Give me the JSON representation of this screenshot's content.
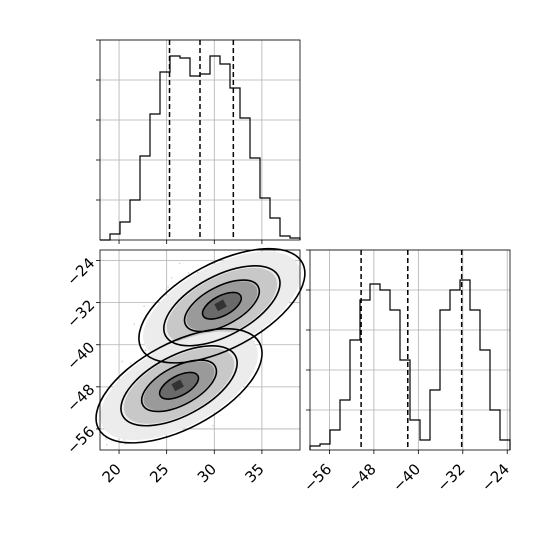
{
  "chart_data": [
    {
      "type": "histogram",
      "panel": "top-left",
      "variable_index": 0,
      "xlim": [
        18,
        39
      ],
      "ylim": [
        0,
        100
      ],
      "bins_x": [
        18,
        19.05,
        20.1,
        21.15,
        22.2,
        23.25,
        24.3,
        25.35,
        26.4,
        27.45,
        28.5,
        29.55,
        30.6,
        31.65,
        32.7,
        33.75,
        34.8,
        35.85,
        36.9,
        37.95,
        39
      ],
      "counts": [
        0,
        3,
        9,
        20,
        42,
        63,
        84,
        92,
        91,
        82,
        83,
        92,
        88,
        76,
        61,
        41,
        21,
        11,
        2,
        1
      ],
      "quantiles": [
        25.3,
        28.5,
        32.0
      ],
      "grid": true
    },
    {
      "type": "scatter",
      "panel": "bottom-left",
      "subtype": "2d-histogram-with-contours",
      "xlim": [
        18,
        39
      ],
      "ylim": [
        -60,
        -22
      ],
      "xticks": [
        20,
        25,
        30,
        35
      ],
      "yticks": [
        -24,
        -32,
        -40,
        -48,
        -56
      ],
      "clusters": [
        {
          "center_x": 30.8,
          "center_y": -32.6,
          "sigma_major": 3.2,
          "sigma_minor": 1.5,
          "angle_deg": -28
        },
        {
          "center_x": 26.3,
          "center_y": -47.8,
          "sigma_major": 3.2,
          "sigma_minor": 1.5,
          "angle_deg": -28
        }
      ],
      "grid": true
    },
    {
      "type": "histogram",
      "panel": "bottom-right",
      "variable_index": 1,
      "xlim": [
        -59.5,
        -23.5
      ],
      "ylim": [
        0,
        100
      ],
      "xticks": [
        -56,
        -48,
        -40,
        -32,
        -24
      ],
      "bins_x": [
        -59.5,
        -57.7,
        -55.9,
        -54.1,
        -52.3,
        -50.5,
        -48.7,
        -46.9,
        -45.1,
        -43.3,
        -41.5,
        -39.7,
        -37.9,
        -36.1,
        -34.3,
        -32.5,
        -30.7,
        -28.9,
        -27.1,
        -25.3,
        -23.5
      ],
      "counts": [
        2,
        3,
        10,
        25,
        55,
        75,
        83,
        80,
        70,
        45,
        15,
        5,
        30,
        70,
        80,
        85,
        70,
        50,
        20,
        5
      ],
      "quantiles": [
        -50.3,
        -41.9,
        -32.2
      ],
      "grid": true
    },
    {
      "type": "table",
      "panel": "top-right",
      "note_empty": true
    }
  ],
  "labels": {
    "x_ticks_bottom_left": [
      "20",
      "25",
      "30",
      "35"
    ],
    "y_ticks_bottom_left": [
      "−24",
      "−32",
      "−40",
      "−48",
      "−56"
    ],
    "x_ticks_bottom_right": [
      "−56",
      "−48",
      "−40",
      "−32",
      "−24"
    ]
  },
  "colors": {
    "line": "#000000",
    "grid": "#b0b0b0",
    "points": "#7f7f7f"
  }
}
